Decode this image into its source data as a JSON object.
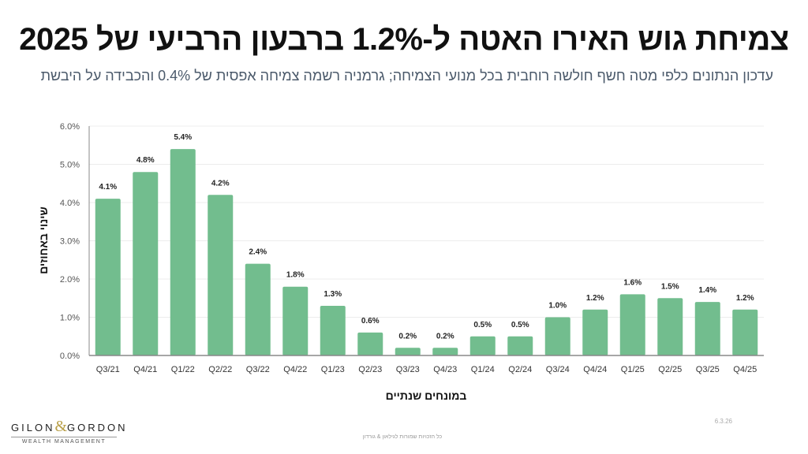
{
  "header": {
    "title": "צמיחת גוש האירו האטה ל-1.2% ברבעון הרביעי של 2025",
    "subtitle": "עדכון הנתונים כלפי מטה חשף חולשה רוחבית בכל מנועי הצמיחה; גרמניה רשמה צמיחה אפסית של 0.4% והכבידה על היבשת"
  },
  "chart_data": {
    "type": "bar",
    "title": "צמיחת גוש האירו האטה ל-1.2% ברבעון הרביעי של 2025",
    "xlabel": "במונחים שנתיים",
    "ylabel": "שינוי באחוזים",
    "categories": [
      "Q3/21",
      "Q4/21",
      "Q1/22",
      "Q2/22",
      "Q3/22",
      "Q4/22",
      "Q1/23",
      "Q2/23",
      "Q3/23",
      "Q4/23",
      "Q1/24",
      "Q2/24",
      "Q3/24",
      "Q4/24",
      "Q1/25",
      "Q2/25",
      "Q3/25",
      "Q4/25"
    ],
    "values": [
      4.1,
      4.8,
      5.4,
      4.2,
      2.4,
      1.8,
      1.3,
      0.6,
      0.2,
      0.2,
      0.5,
      0.5,
      1.0,
      1.2,
      1.6,
      1.5,
      1.4,
      1.2
    ],
    "data_labels": [
      "4.1%",
      "4.8%",
      "5.4%",
      "4.2%",
      "2.4%",
      "1.8%",
      "1.3%",
      "0.6%",
      "0.2%",
      "0.2%",
      "0.5%",
      "0.5%",
      "1.0%",
      "1.2%",
      "1.6%",
      "1.5%",
      "1.4%",
      "1.2%"
    ],
    "yticks": [
      "0.0%",
      "1.0%",
      "2.0%",
      "3.0%",
      "4.0%",
      "5.0%",
      "6.0%"
    ],
    "ytick_values": [
      0,
      1,
      2,
      3,
      4,
      5,
      6
    ],
    "ylim": [
      0,
      6
    ],
    "grid": true,
    "legend": "none",
    "colors": {
      "bar": "#72bd8e",
      "axis": "#888888",
      "grid": "#ececec"
    }
  },
  "branding": {
    "logo_left": "GILON",
    "logo_amp": "&",
    "logo_right": "GORDON",
    "logo_sub": "WEALTH MANAGEMENT",
    "date": "6.3.26",
    "footer": "כל הזכויות שמורות לגילאון & גורדון"
  }
}
